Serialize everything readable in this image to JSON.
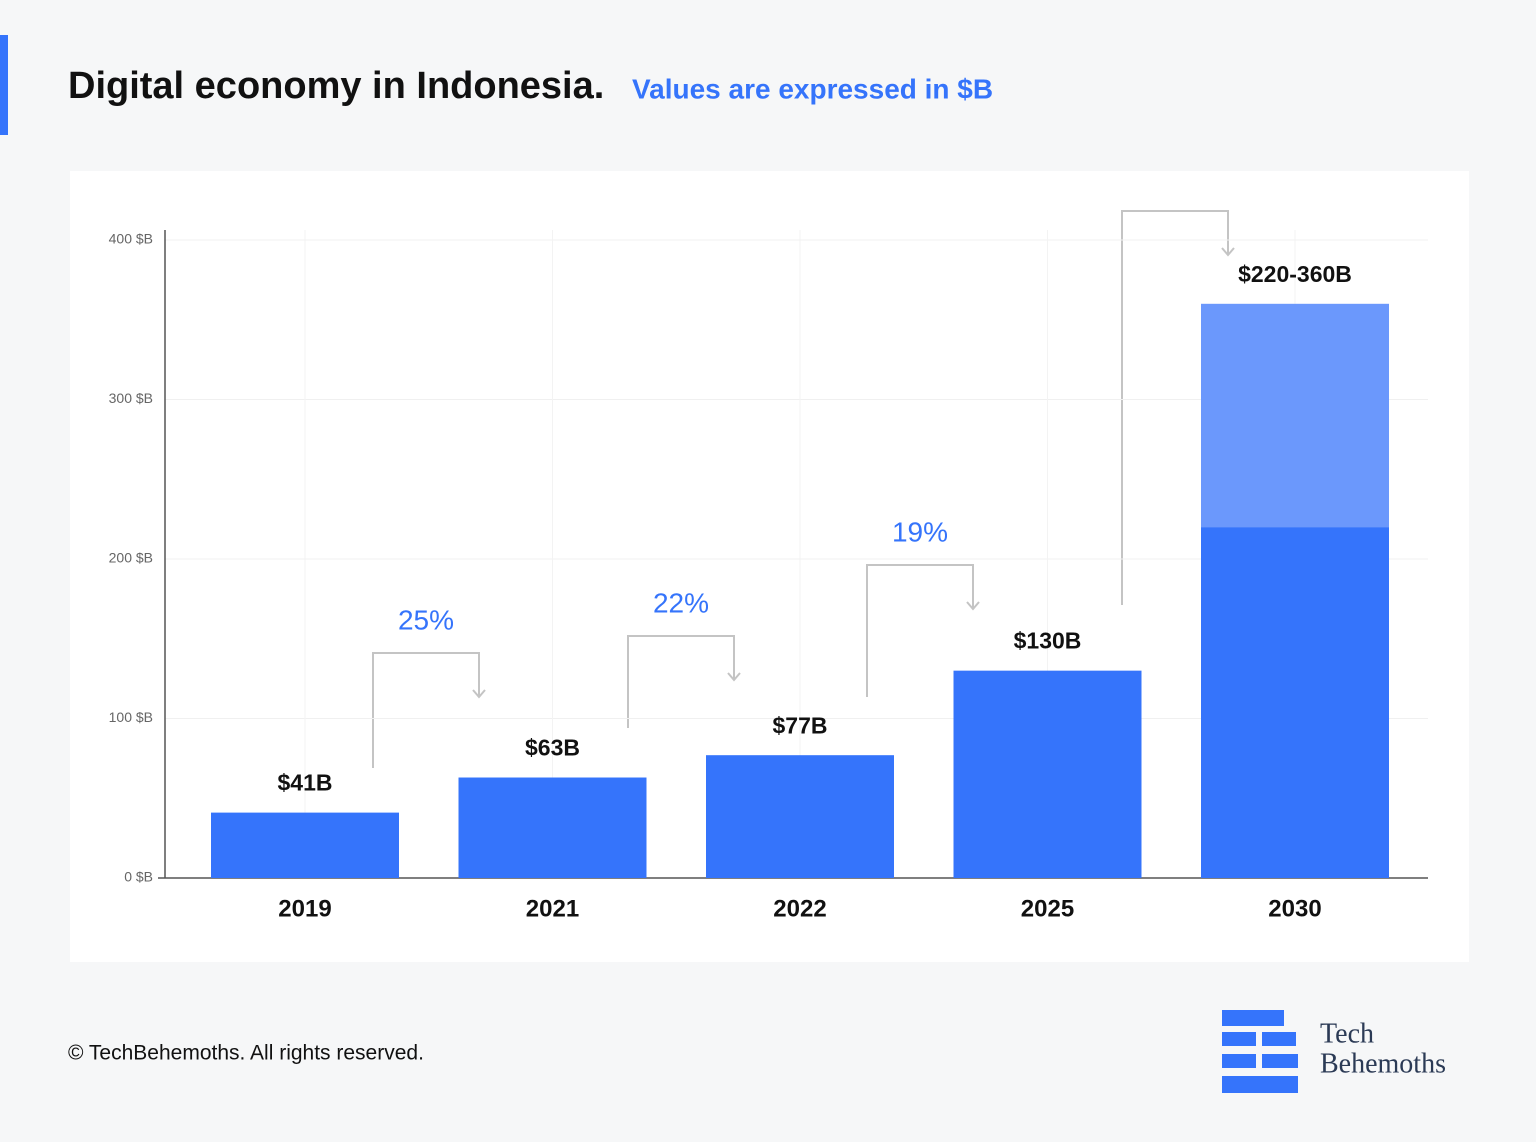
{
  "title": "Digital economy in Indonesia.",
  "subtitle": "Values are expressed in $B",
  "footer": "© TechBehemoths. All rights reserved.",
  "logo": [
    "Tech",
    "Behemoths"
  ],
  "chart_data": {
    "type": "bar",
    "categories": [
      "2019",
      "2021",
      "2022",
      "2025",
      "2030"
    ],
    "series": [
      {
        "color": "#3574fb",
        "values": [
          41,
          63,
          77,
          130,
          220
        ],
        "value_labels": [
          "$41B",
          "$63B",
          "$77B",
          "$130B",
          "$220-360B"
        ]
      },
      {
        "color": "#6b98fc",
        "values": [
          null,
          null,
          null,
          null,
          140
        ]
      }
    ],
    "stacked": true,
    "ylim": [
      0,
      400
    ],
    "yticks": [
      {
        "value": 0,
        "label": "0 $B"
      },
      {
        "value": 100,
        "label": "100 $B"
      },
      {
        "value": 200,
        "label": "200 $B"
      },
      {
        "value": 300,
        "label": "300 $B"
      },
      {
        "value": 400,
        "label": "400 $B"
      }
    ],
    "grid": true,
    "annotations": [
      "25%",
      "22%",
      "19%"
    ]
  }
}
